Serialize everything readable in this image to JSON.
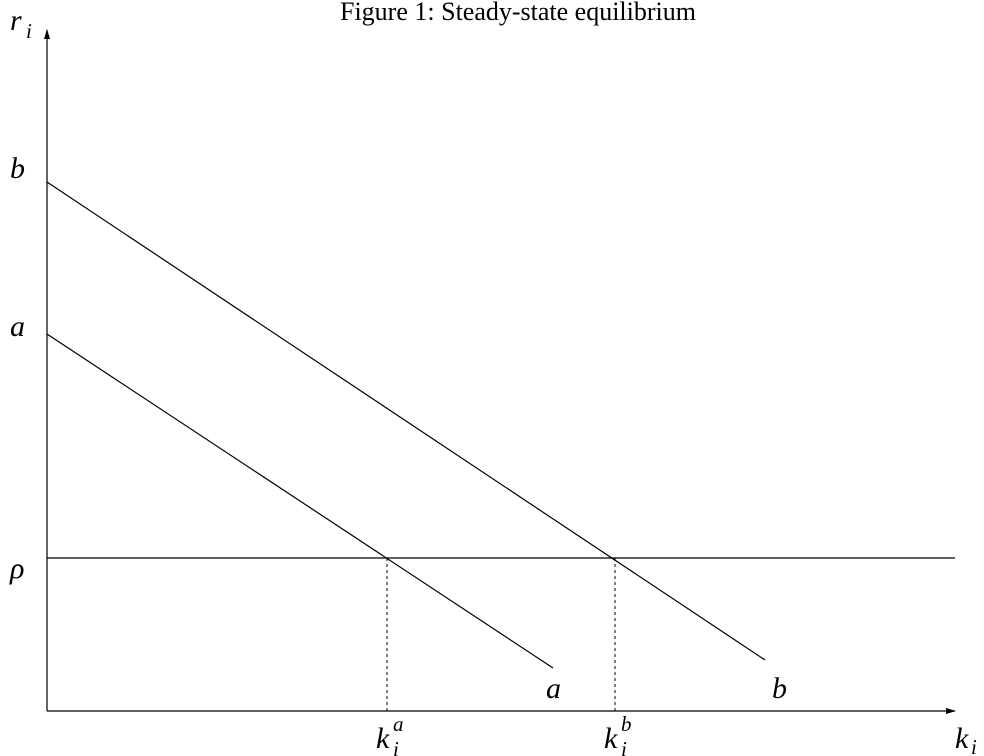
{
  "title": "Figure 1: Steady-state equilibrium",
  "y_axis": {
    "symbol": "r",
    "subscript": "i"
  },
  "x_axis": {
    "symbol": "k",
    "subscript": "i"
  },
  "y_labels": [
    "b",
    "a",
    "ρ"
  ],
  "x_labels": [
    {
      "symbol": "k",
      "subscript": "i",
      "superscript": "a"
    },
    {
      "symbol": "k",
      "subscript": "i",
      "superscript": "b"
    }
  ],
  "curve_labels": [
    "a",
    "b"
  ]
}
